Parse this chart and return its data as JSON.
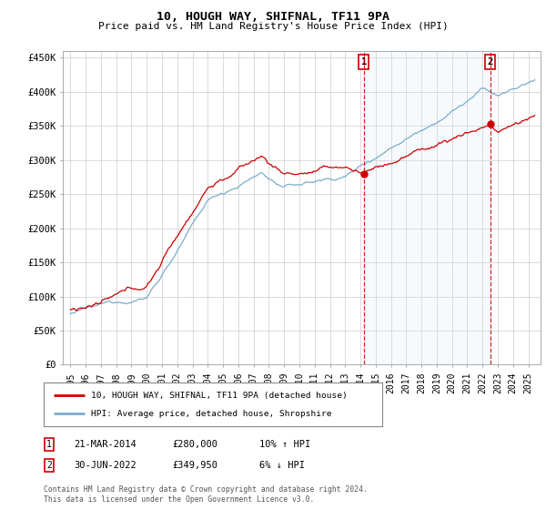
{
  "title": "10, HOUGH WAY, SHIFNAL, TF11 9PA",
  "subtitle": "Price paid vs. HM Land Registry's House Price Index (HPI)",
  "background_color": "#ffffff",
  "plot_background": "#ffffff",
  "grid_color": "#cccccc",
  "red_line_color": "#cc0000",
  "blue_line_color": "#7aadcc",
  "blue_fill_color": "#d0e8f5",
  "sale1_year": 2014.22,
  "sale1_price": 280000,
  "sale1_label": "1",
  "sale1_date": "21-MAR-2014",
  "sale1_hpi": "10% ↑ HPI",
  "sale2_year": 2022.5,
  "sale2_price": 349950,
  "sale2_label": "2",
  "sale2_date": "30-JUN-2022",
  "sale2_hpi": "6% ↓ HPI",
  "legend1": "10, HOUGH WAY, SHIFNAL, TF11 9PA (detached house)",
  "legend2": "HPI: Average price, detached house, Shropshire",
  "footer": "Contains HM Land Registry data © Crown copyright and database right 2024.\nThis data is licensed under the Open Government Licence v3.0.",
  "ylim_max": 460000,
  "yticks": [
    0,
    50000,
    100000,
    150000,
    200000,
    250000,
    300000,
    350000,
    400000,
    450000
  ],
  "ytick_labels": [
    "£0",
    "£50K",
    "£100K",
    "£150K",
    "£200K",
    "£250K",
    "£300K",
    "£350K",
    "£400K",
    "£450K"
  ],
  "xmin": 1994.5,
  "xmax": 2025.8,
  "xticks": [
    1995,
    1996,
    1997,
    1998,
    1999,
    2000,
    2001,
    2002,
    2003,
    2004,
    2005,
    2006,
    2007,
    2008,
    2009,
    2010,
    2011,
    2012,
    2013,
    2014,
    2015,
    2016,
    2017,
    2018,
    2019,
    2020,
    2021,
    2022,
    2023,
    2024,
    2025
  ]
}
